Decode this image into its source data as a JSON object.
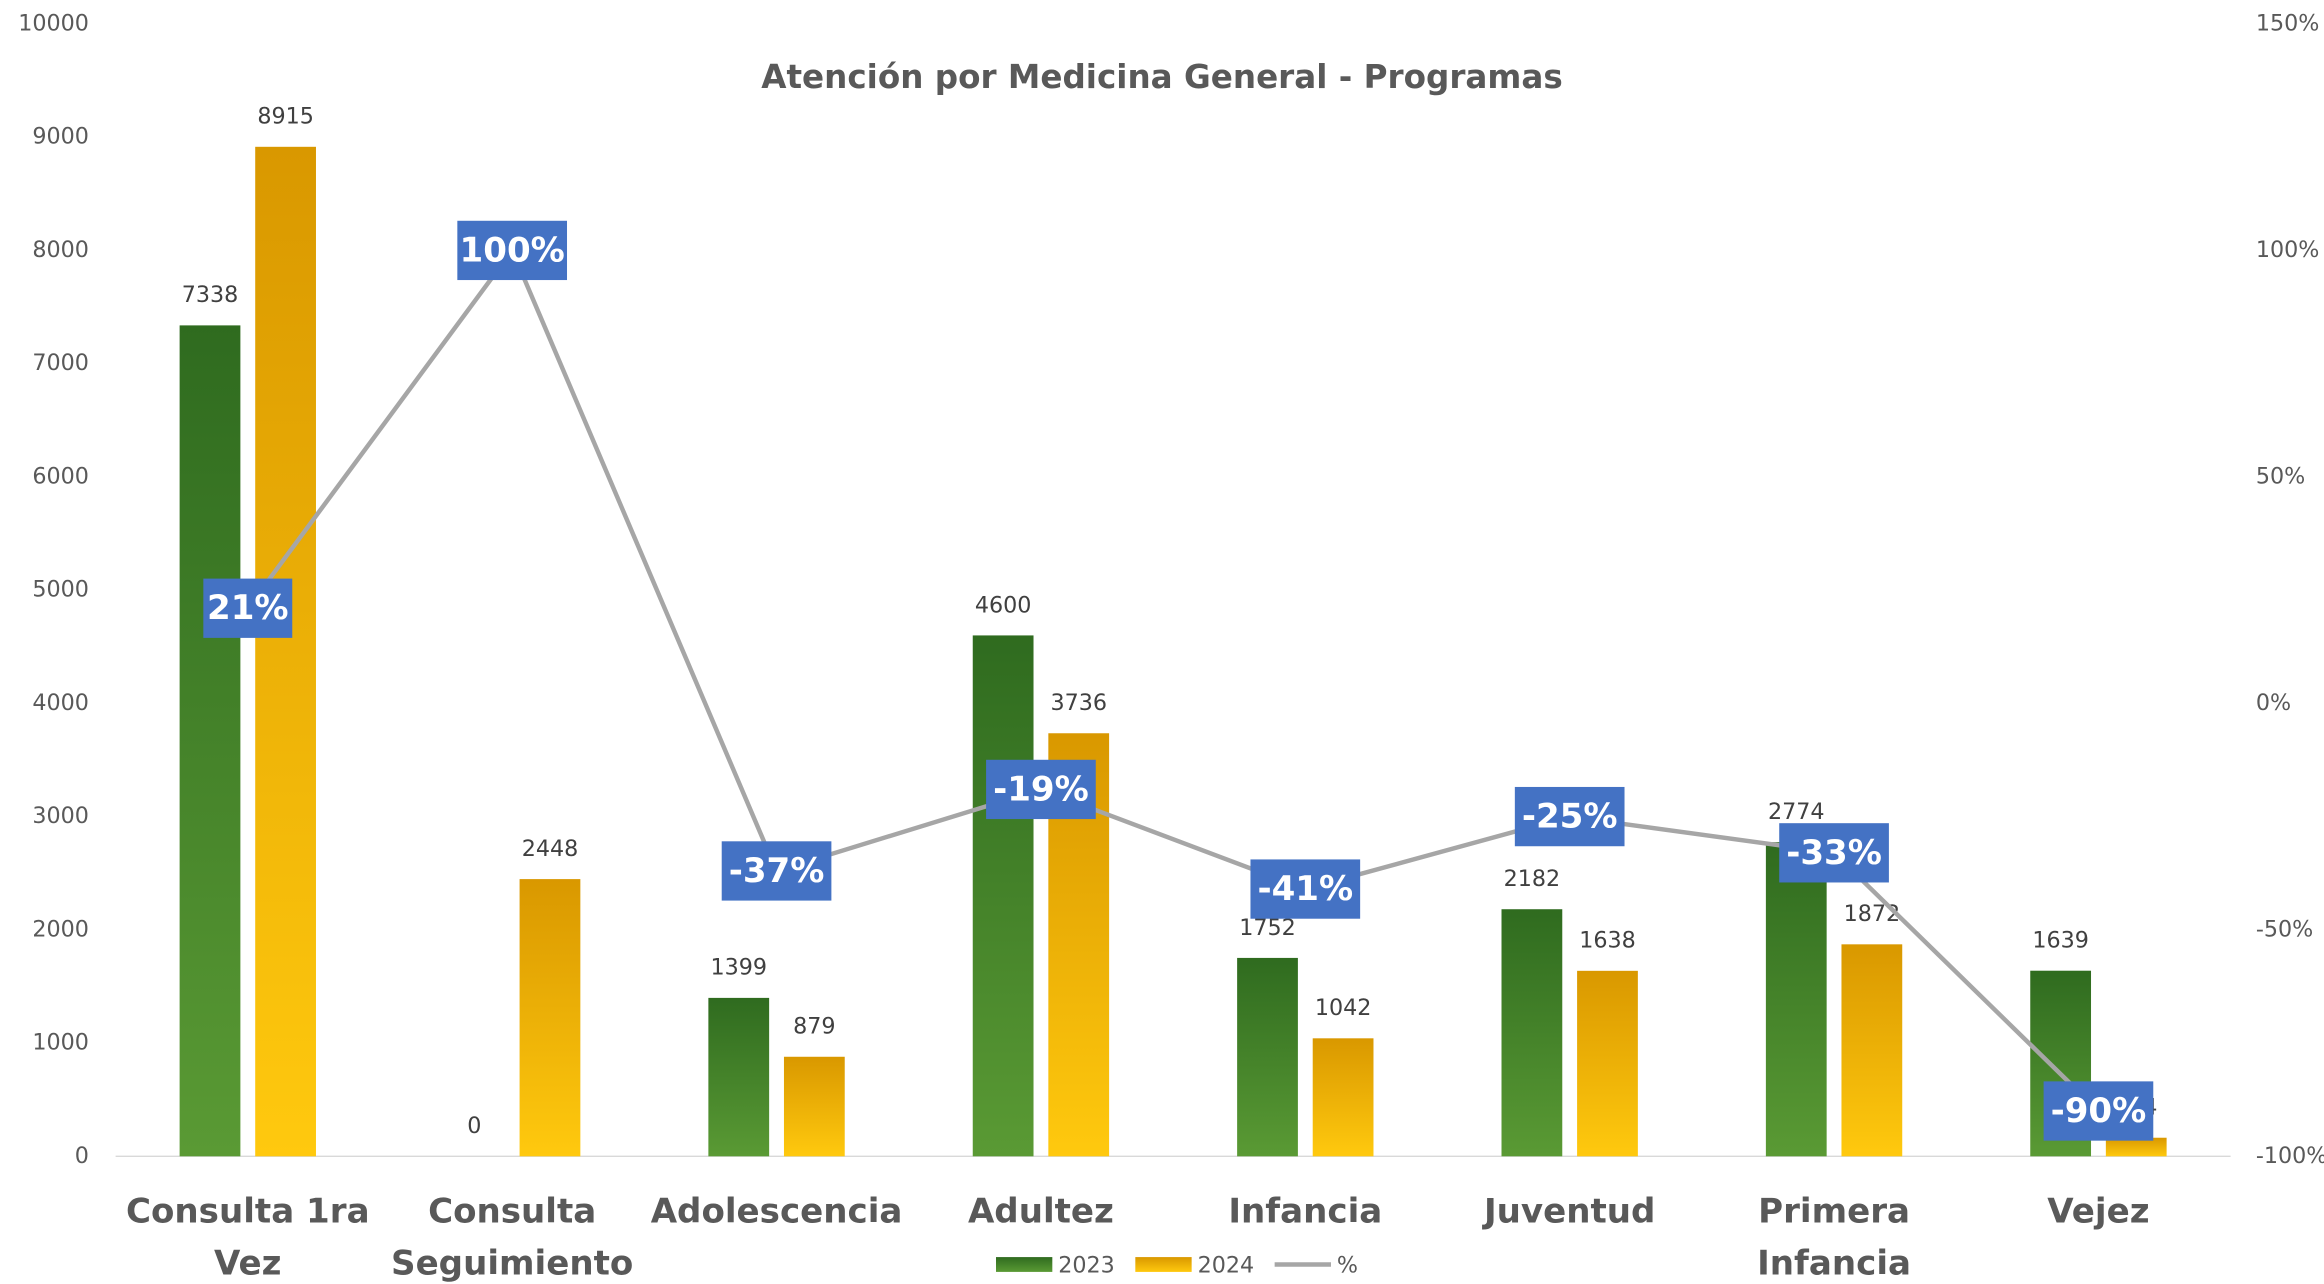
{
  "chart_data": {
    "type": "bar-line",
    "title": "Atención por Medicina General - Programas",
    "categories": [
      "Consulta 1ra Vez",
      "Consulta Seguimiento",
      "Adolescencia",
      "Adultez",
      "Infancia",
      "Juventud",
      "Primera Infancia",
      "Vejez"
    ],
    "series": [
      {
        "name": "2023",
        "color": "#4a8a2a",
        "type": "bar",
        "values": [
          7338,
          0,
          1399,
          4600,
          1752,
          2182,
          2774,
          1639
        ]
      },
      {
        "name": "2024",
        "color": "#f2b705",
        "type": "bar",
        "values": [
          8915,
          2448,
          879,
          3736,
          1042,
          1638,
          1872,
          164
        ]
      },
      {
        "name": "%",
        "color": "#a6a6a6",
        "type": "line",
        "axis": "y2",
        "values": [
          21,
          100,
          -37,
          -19,
          -41,
          -25,
          -33,
          -90
        ],
        "value_labels": [
          "21%",
          "100%",
          "-37%",
          "-19%",
          "-41%",
          "-25%",
          "-33%",
          "-90%"
        ]
      }
    ],
    "ylim": [
      0,
      10000
    ],
    "yticks": [
      0,
      1000,
      2000,
      3000,
      4000,
      5000,
      6000,
      7000,
      8000,
      9000,
      10000
    ],
    "y2lim": [
      -100,
      150
    ],
    "y2ticks": [
      {
        "value": -100,
        "label": "-100%"
      },
      {
        "value": -50,
        "label": "-50%"
      },
      {
        "value": 0,
        "label": "0%"
      },
      {
        "value": 50,
        "label": "50%"
      },
      {
        "value": 100,
        "label": "100%"
      },
      {
        "value": 150,
        "label": "150%"
      }
    ],
    "legend": "bottom",
    "label_color": "#4472c4"
  }
}
